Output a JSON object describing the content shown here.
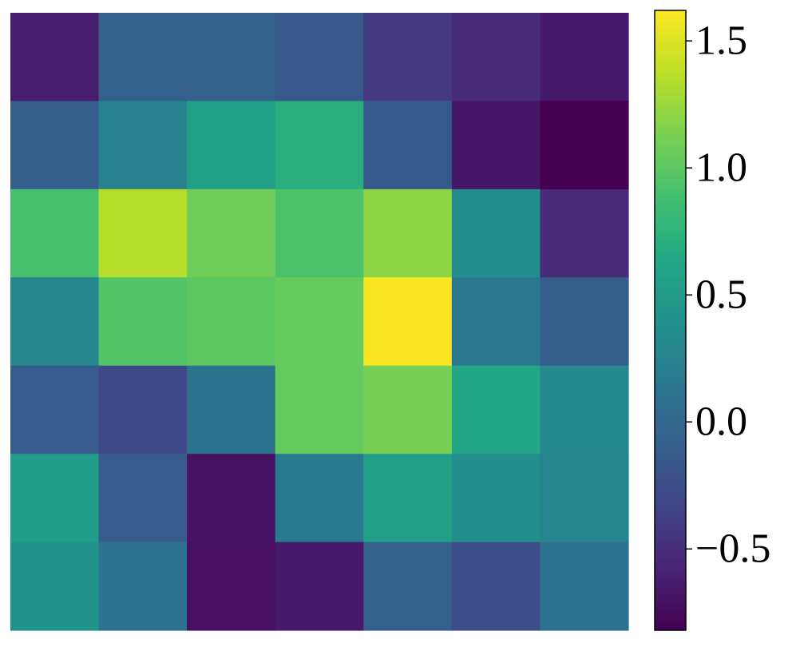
{
  "chart_data": {
    "type": "heatmap",
    "title": "",
    "xlabel": "",
    "ylabel": "",
    "rows": 7,
    "cols": 7,
    "values": [
      [
        -0.62,
        -0.08,
        -0.07,
        -0.15,
        -0.42,
        -0.52,
        -0.65
      ],
      [
        -0.1,
        0.25,
        0.56,
        0.7,
        -0.13,
        -0.67,
        -0.85
      ],
      [
        0.9,
        1.35,
        1.08,
        0.92,
        1.2,
        0.35,
        -0.52
      ],
      [
        0.3,
        0.95,
        1.0,
        1.04,
        1.6,
        0.15,
        -0.1
      ],
      [
        -0.12,
        -0.28,
        0.12,
        1.04,
        1.12,
        0.62,
        0.32
      ],
      [
        0.52,
        -0.12,
        -0.7,
        0.18,
        0.54,
        0.38,
        0.28
      ],
      [
        0.42,
        0.1,
        -0.72,
        -0.65,
        -0.09,
        -0.24,
        0.1
      ]
    ],
    "colormap": "viridis",
    "colorbar": {
      "vmin": -0.82,
      "vmax": 1.62,
      "ticks": [
        -0.5,
        0.0,
        0.5,
        1.0,
        1.5
      ],
      "tick_labels": [
        "−0.5",
        "0.0",
        "0.5",
        "1.0",
        "1.5"
      ]
    },
    "grid": false,
    "x_ticks_visible": false,
    "y_ticks_visible": false
  }
}
